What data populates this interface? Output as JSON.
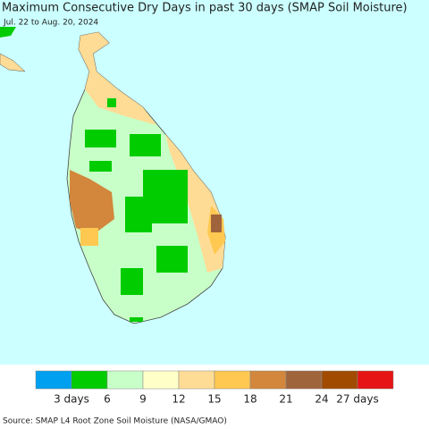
{
  "header": {
    "title": "Maximum Consecutive Dry Days in past 30 days (SMAP Soil Moisture)",
    "subtitle": "Jul. 22 to Aug. 20, 2024"
  },
  "legend": {
    "colors": [
      "#00a0f0",
      "#00cc00",
      "#c8ffc8",
      "#ffffc8",
      "#ffdc96",
      "#ffc850",
      "#d2873c",
      "#a0643c",
      "#a04b00",
      "#e61414"
    ],
    "range": [
      0,
      30
    ],
    "ticks": [
      {
        "value": 3,
        "label": "3 days"
      },
      6,
      9,
      12,
      15,
      18,
      21,
      24,
      {
        "value": 27,
        "label": "27 days"
      }
    ]
  },
  "footer": {
    "source": "Source: SMAP L4 Root Zone Soil Moisture (NASA/GMAO)"
  }
}
